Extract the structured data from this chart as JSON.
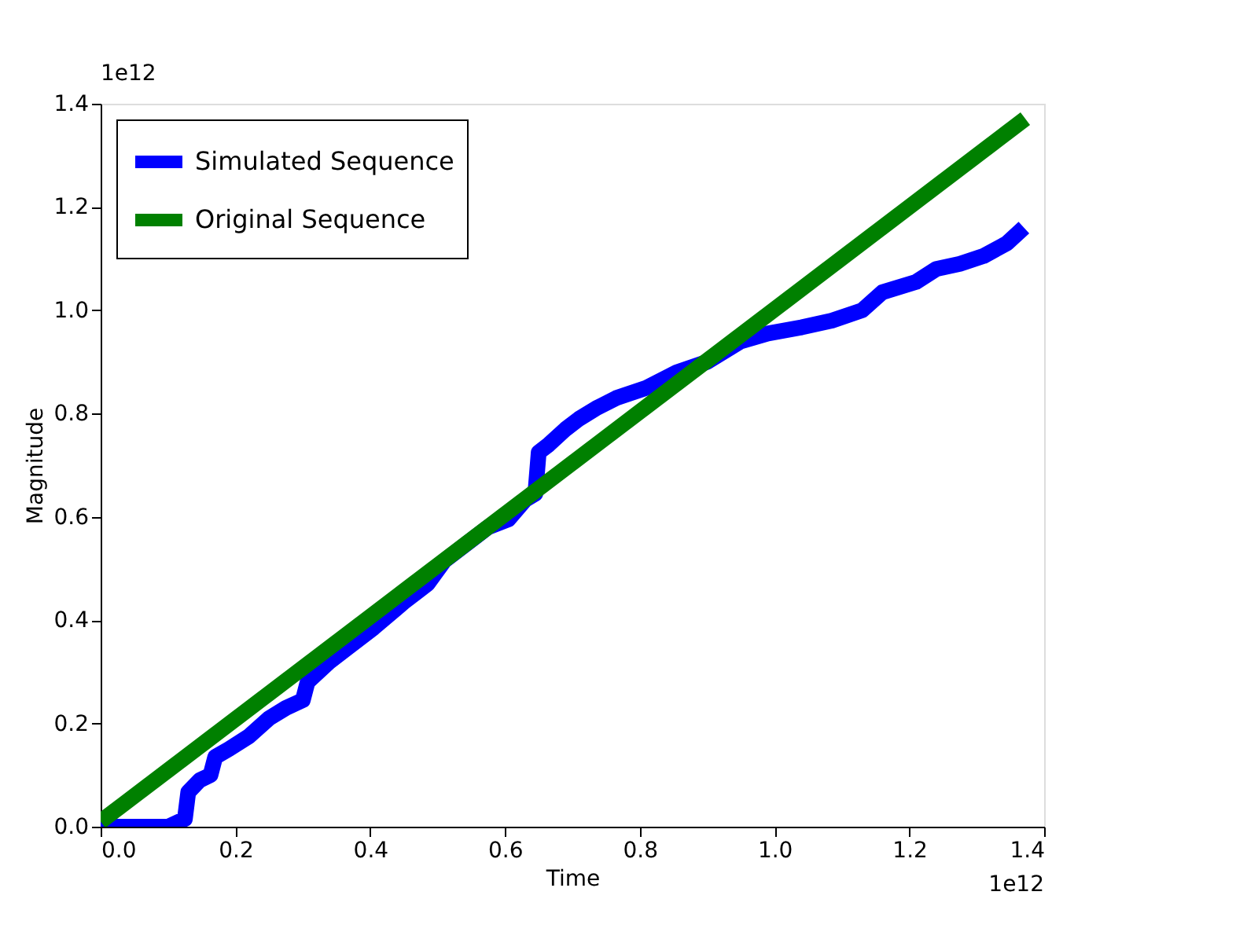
{
  "chart_data": {
    "type": "line",
    "xlabel": "Time",
    "ylabel": "Magnitude",
    "annotations": [
      "1e12",
      "1e12"
    ],
    "xlim": [
      0,
      1.4
    ],
    "ylim": [
      0,
      1.4
    ],
    "xticks": [
      {
        "value": 0,
        "label": "0.0"
      },
      0.2,
      0.4,
      0.6,
      0.8,
      {
        "value": 1,
        "label": "1.0"
      },
      1.2,
      1.4
    ],
    "yticks": [
      {
        "value": 0,
        "label": "0.0"
      },
      0.2,
      0.4,
      0.6,
      0.8,
      {
        "value": 1,
        "label": "1.0"
      },
      1.2,
      1.4
    ],
    "grid": false,
    "legend": "top left",
    "marker": "none",
    "line_style": "solid",
    "series": [
      {
        "name": "Simulated Sequence",
        "color": "#0000ff",
        "x": [
          0,
          0.1,
          0.125,
          0.13,
          0.147,
          0.163,
          0.17,
          0.19,
          0.22,
          0.25,
          0.275,
          0.3,
          0.307,
          0.34,
          0.365,
          0.405,
          0.45,
          0.485,
          0.51,
          0.555,
          0.575,
          0.605,
          0.63,
          0.645,
          0.65,
          0.665,
          0.69,
          0.71,
          0.735,
          0.765,
          0.81,
          0.855,
          0.9,
          0.95,
          0.99,
          1.04,
          1.085,
          1.13,
          1.16,
          1.21,
          1.24,
          1.275,
          1.31,
          1.345,
          1.37
        ],
        "values": [
          0,
          0,
          0.015,
          0.067,
          0.09,
          0.1,
          0.135,
          0.15,
          0.175,
          0.21,
          0.23,
          0.245,
          0.28,
          0.32,
          0.345,
          0.385,
          0.435,
          0.47,
          0.515,
          0.56,
          0.58,
          0.595,
          0.633,
          0.645,
          0.725,
          0.74,
          0.77,
          0.79,
          0.81,
          0.83,
          0.85,
          0.88,
          0.9,
          0.94,
          0.955,
          0.967,
          0.98,
          1.0,
          1.035,
          1.055,
          1.08,
          1.09,
          1.105,
          1.13,
          1.16
        ]
      },
      {
        "name": "Original Sequence",
        "color": "#008000",
        "x": [
          0,
          1.372
        ],
        "values": [
          0.01,
          1.371
        ]
      }
    ]
  }
}
